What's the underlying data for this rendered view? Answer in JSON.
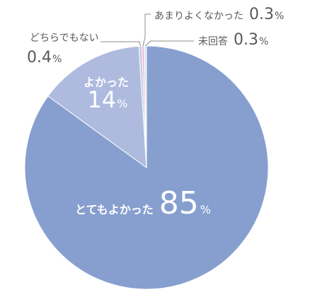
{
  "chart_data": {
    "type": "pie",
    "slices": [
      {
        "label": "とてもよかった",
        "value": 85,
        "display_value": "85",
        "unit": "%",
        "color": "#869fcf"
      },
      {
        "label": "よかった",
        "value": 14,
        "display_value": "14",
        "unit": "%",
        "color": "#aebbdf"
      },
      {
        "label": "どちらでもない",
        "value": 0.4,
        "display_value": "0.4",
        "unit": "%",
        "color": "#c4cce8"
      },
      {
        "label": "あまりよくなかった",
        "value": 0.3,
        "display_value": "0.3",
        "unit": "%",
        "color": "#e8b9c6"
      },
      {
        "label": "未回答",
        "value": 0.3,
        "display_value": "0.3",
        "unit": "%",
        "color": "#dde2ef"
      }
    ],
    "start_angle_deg": 0,
    "direction": "clockwise",
    "legend": "none",
    "colors": {
      "label_inside": "#ffffff",
      "label_outside": "#595959",
      "leader_line": "#8c8c8c",
      "separator": "#ffffff"
    }
  }
}
